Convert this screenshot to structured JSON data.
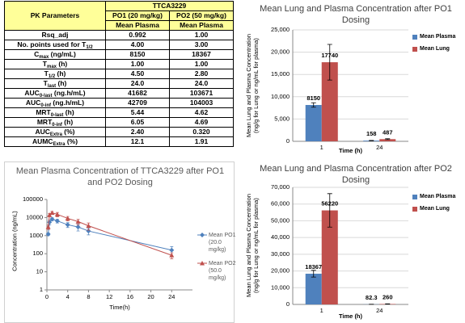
{
  "table": {
    "corner": "PK Parameters",
    "group": "TTCA3229",
    "columns": [
      "PO1 (20 mg/kg)",
      "PO2 (50 mg/kg)"
    ],
    "subheaders": [
      "Mean Plasma",
      "Mean Plasma"
    ],
    "rows": [
      {
        "label": [
          "Rsq_adj"
        ],
        "values": [
          "0.992",
          "1.00"
        ]
      },
      {
        "label": [
          "No. points used for T",
          "1/2"
        ],
        "values": [
          "4.00",
          "3.00"
        ]
      },
      {
        "label": [
          "C",
          "max",
          " (ng/mL)"
        ],
        "values": [
          "8150",
          "18367"
        ]
      },
      {
        "label": [
          "T",
          "max",
          " (h)"
        ],
        "values": [
          "1.00",
          "1.00"
        ]
      },
      {
        "label": [
          "T",
          "1/2",
          " (h)"
        ],
        "values": [
          "4.50",
          "2.80"
        ]
      },
      {
        "label": [
          "T",
          "last",
          " (h)"
        ],
        "values": [
          "24.0",
          "24.0"
        ]
      },
      {
        "label": [
          "AUC",
          "0-last",
          " (ng.h/mL)"
        ],
        "values": [
          "41682",
          "103671"
        ]
      },
      {
        "label": [
          "AUC",
          "0-inf",
          " (ng.h/mL)"
        ],
        "values": [
          "42709",
          "104003"
        ]
      },
      {
        "label": [
          "MRT",
          "0-last",
          " (h)"
        ],
        "values": [
          "5.44",
          "4.62"
        ]
      },
      {
        "label": [
          "MRT",
          "0-inf",
          " (h)"
        ],
        "values": [
          "6.05",
          "4.69"
        ]
      },
      {
        "label": [
          "AUC",
          "Extra",
          " (%)"
        ],
        "values": [
          "2.40",
          "0.320"
        ]
      },
      {
        "label": [
          "AUMC",
          "Extra",
          " (%)"
        ],
        "values": [
          "12.1",
          "1.91"
        ]
      }
    ]
  },
  "chart_data": [
    {
      "type": "bar",
      "title": "Mean Lung and Plasma Concentration after PO1 Dosing",
      "ylabel": "Mean Lung and Plasma Concentration (ng/g for Lung or ng/mL for plasma)",
      "xlabel": "Time (h)",
      "categories": [
        "1",
        "24"
      ],
      "series": [
        {
          "name": "Mean Plasma",
          "color": "#4f81bd",
          "values": [
            8150,
            158
          ],
          "errors": [
            500,
            40
          ]
        },
        {
          "name": "Mean Lung",
          "color": "#c0504d",
          "values": [
            17740,
            487
          ],
          "errors": [
            4000,
            100
          ]
        }
      ],
      "ylim": [
        0,
        25000
      ],
      "yticks": [
        0,
        {
          "value": 5000,
          "label": "5,000"
        },
        {
          "value": 10000,
          "label": "10,000"
        },
        {
          "value": 15000,
          "label": "15,000"
        },
        {
          "value": 20000,
          "label": "20,000"
        },
        {
          "value": 25000,
          "label": "25,000"
        }
      ],
      "grid": true,
      "legend": "right"
    },
    {
      "type": "line",
      "title": "Mean Plasma Concentration of TTCA3229 after PO1 and PO2 Dosing",
      "ylabel": "Concentration (ng/mL)",
      "xlabel": "Time(h)",
      "x": [
        0.25,
        0.5,
        1,
        2,
        4,
        6,
        8,
        24
      ],
      "series": [
        {
          "name": "Mean PO1 (20.0 mg/kg)",
          "color": "#4f81bd",
          "marker": "diamond",
          "values": [
            1200,
            5500,
            8150,
            6500,
            4000,
            3000,
            1800,
            158
          ],
          "errors": [
            200,
            1500,
            1500,
            1500,
            1200,
            1200,
            700,
            90
          ]
        },
        {
          "name": "Mean PO2 (50.0 mg/kg)",
          "color": "#c0504d",
          "marker": "triangle",
          "values": [
            3000,
            14000,
            18367,
            15000,
            9000,
            6000,
            3500,
            82.3
          ],
          "errors": [
            800,
            3000,
            3500,
            4000,
            2500,
            2000,
            1500,
            30
          ]
        }
      ],
      "xlim": [
        0,
        28
      ],
      "xticks": [
        0,
        4,
        8,
        12,
        16,
        20,
        24
      ],
      "ylim": [
        1,
        100000
      ],
      "yticks": [
        1,
        10,
        100,
        1000,
        10000,
        100000
      ],
      "log_y": true,
      "grid": false,
      "legend": "right"
    },
    {
      "type": "bar",
      "title": "Mean Lung and Plasma Concentration after PO2 Dosing",
      "ylabel": "Mean Lung and Plasma Concentration (ng/g for Lung or ng/mL for plasma)",
      "xlabel": "Time (h)",
      "categories": [
        "1",
        "24"
      ],
      "series": [
        {
          "name": "Mean Plasma",
          "color": "#4f81bd",
          "values": [
            18367,
            82.3
          ],
          "errors": [
            2000,
            20
          ]
        },
        {
          "name": "Mean Lung",
          "color": "#c0504d",
          "values": [
            56220,
            260
          ],
          "errors": [
            10000,
            60
          ]
        }
      ],
      "ylim": [
        0,
        70000
      ],
      "yticks": [
        0,
        {
          "value": 10000,
          "label": "10,000"
        },
        {
          "value": 20000,
          "label": "20,000"
        },
        {
          "value": 30000,
          "label": "30,000"
        },
        {
          "value": 40000,
          "label": "40,000"
        },
        {
          "value": 50000,
          "label": "50,000"
        },
        {
          "value": 60000,
          "label": "60,000"
        },
        {
          "value": 70000,
          "label": "70,000"
        }
      ],
      "grid": true,
      "legend": "right"
    }
  ]
}
